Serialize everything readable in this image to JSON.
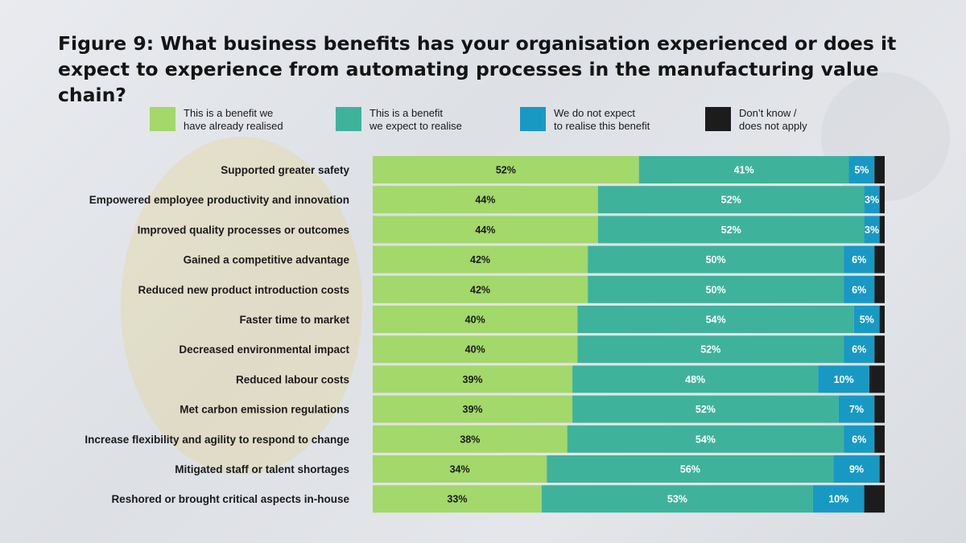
{
  "title": "Figure 9: What business benefits has your organisation experienced or does it expect to experience from automating processes in the manufacturing value chain?",
  "colors": {
    "realised": "#a3d86a",
    "expect": "#3fb29c",
    "not_expect": "#1899c4",
    "dont_know": "#1c1c1c"
  },
  "legend": [
    {
      "label": "This is a benefit we\nhave already realised",
      "color": "#a3d86a"
    },
    {
      "label": "This is a benefit\nwe expect to realise",
      "color": "#3fb29c"
    },
    {
      "label": "We do not expect\nto realise this benefit",
      "color": "#1899c4"
    },
    {
      "label": "Don’t know /\ndoes not apply",
      "color": "#1c1c1c"
    }
  ],
  "chart_data": {
    "type": "bar",
    "orientation": "horizontal",
    "stacked": true,
    "categories": [
      "Supported greater safety",
      "Empowered employee productivity and innovation",
      "Improved quality processes or outcomes",
      "Gained a competitive advantage",
      "Reduced new product introduction costs",
      "Faster time to market",
      "Decreased environmental impact",
      "Reduced labour costs",
      "Met carbon emission regulations",
      "Increase flexibility and agility to respond to change",
      "Mitigated staff or talent shortages",
      "Reshored or brought critical aspects in-house"
    ],
    "series": [
      {
        "name": "This is a benefit we have already realised",
        "values": [
          52,
          44,
          44,
          42,
          42,
          40,
          40,
          39,
          39,
          38,
          34,
          33
        ]
      },
      {
        "name": "This is a benefit we expect to realise",
        "values": [
          41,
          52,
          52,
          50,
          50,
          54,
          52,
          48,
          52,
          54,
          56,
          53
        ]
      },
      {
        "name": "We do not expect to realise this benefit",
        "values": [
          5,
          3,
          3,
          6,
          6,
          5,
          6,
          10,
          7,
          6,
          9,
          10
        ]
      },
      {
        "name": "Don’t know / does not apply",
        "values": [
          2,
          1,
          1,
          2,
          2,
          1,
          2,
          3,
          2,
          2,
          1,
          4
        ]
      }
    ],
    "data_labels": [
      [
        "52%",
        "44%",
        "44%",
        "42%",
        "42%",
        "40%",
        "40%",
        "39%",
        "39%",
        "38%",
        "34%",
        "33%"
      ],
      [
        "41%",
        "52%",
        "52%",
        "50%",
        "50%",
        "54%",
        "52%",
        "48%",
        "52%",
        "54%",
        "56%",
        "53%"
      ],
      [
        "5%",
        "3%",
        "3%",
        "6%",
        "6%",
        "5%",
        "6%",
        "10%",
        "7%",
        "6%",
        "9%",
        "10%"
      ],
      [
        "",
        "",
        "",
        "",
        "",
        "",
        "",
        "",
        "",
        "",
        "",
        ""
      ]
    ],
    "xlim": [
      0,
      100
    ],
    "grid": false,
    "legend_position": "top"
  }
}
